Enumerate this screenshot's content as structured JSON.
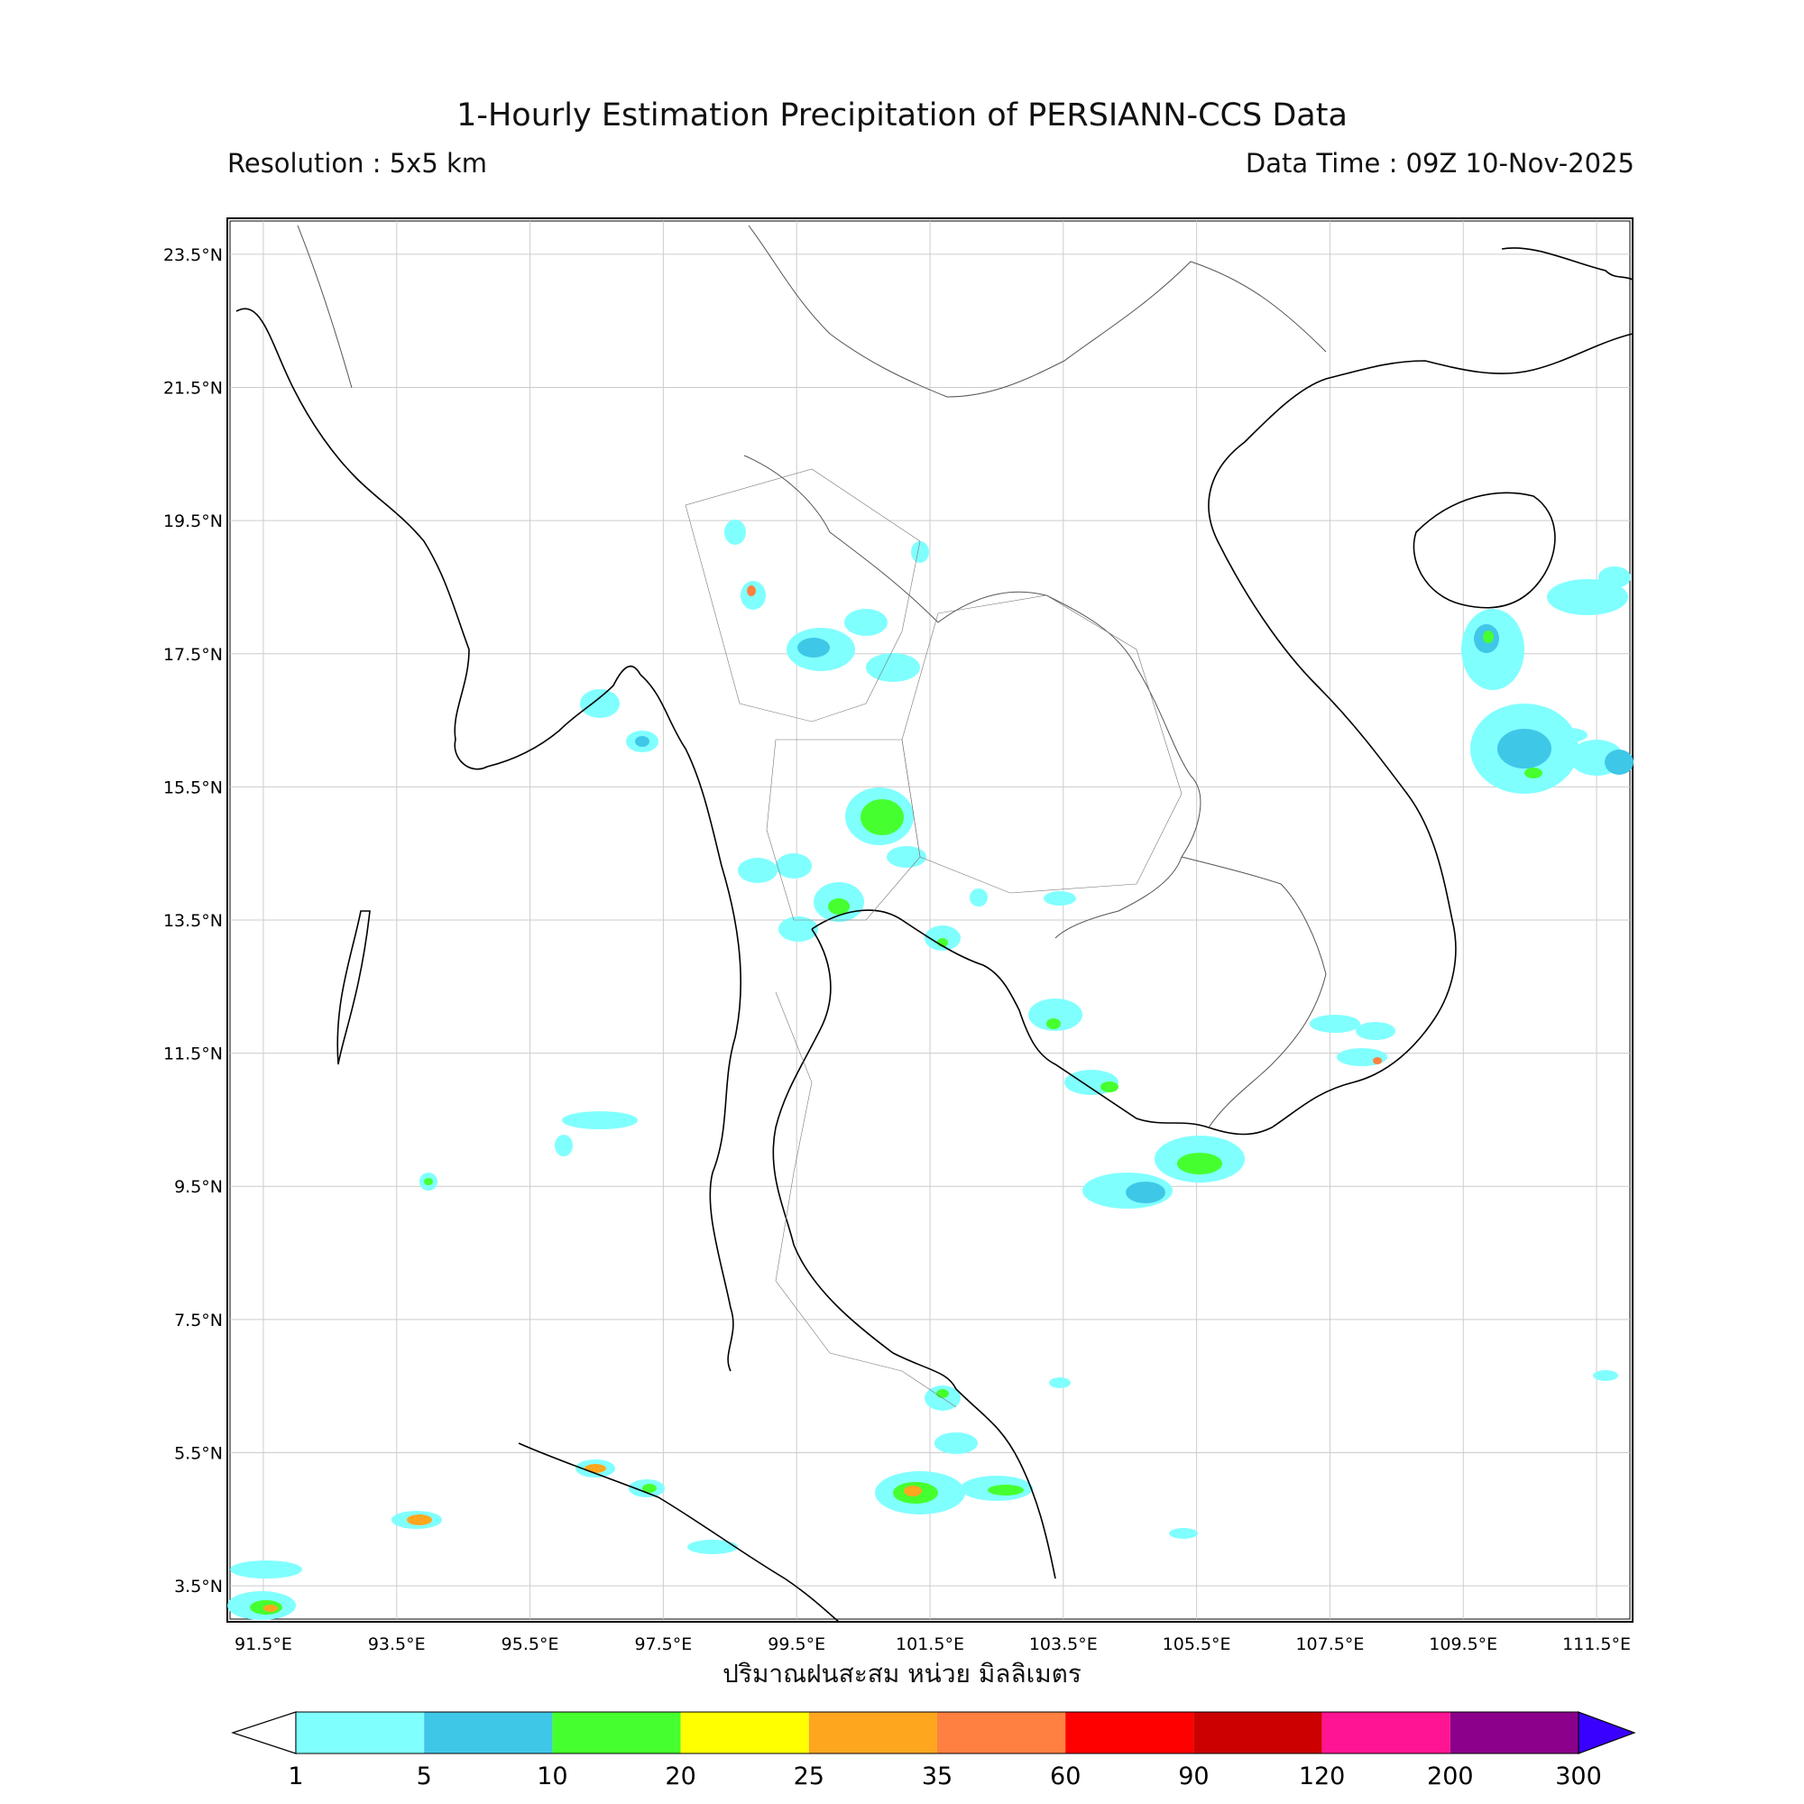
{
  "header": {
    "title": "1-Hourly Estimation Precipitation of PERSIANN-CCS Data",
    "resolution": "Resolution : 5x5 km",
    "data_time": "Data Time : 09Z 10-Nov-2025"
  },
  "map": {
    "region": "Thailand and Southeast Asia",
    "lon_range": [
      91.0,
      112.0
    ],
    "lat_range": [
      3.0,
      24.0
    ],
    "lon_ticks": [
      "91.5°E",
      "93.5°E",
      "95.5°E",
      "97.5°E",
      "99.5°E",
      "101.5°E",
      "103.5°E",
      "105.5°E",
      "107.5°E",
      "109.5°E",
      "111.5°E"
    ],
    "lat_ticks": [
      "23.5°N",
      "21.5°N",
      "19.5°N",
      "17.5°N",
      "15.5°N",
      "13.5°N",
      "11.5°N",
      "9.5°N",
      "7.5°N",
      "5.5°N",
      "3.5°N"
    ],
    "grid": true,
    "xaxis_title": "ปริมาณฝนสะสม หน่วย มิลลิเมตร"
  },
  "colorbar": {
    "labels": [
      "1",
      "5",
      "10",
      "20",
      "25",
      "35",
      "60",
      "90",
      "120",
      "200",
      "300"
    ],
    "colors": [
      "#80ffff",
      "#3fc7e8",
      "#46ff2e",
      "#ffff00",
      "#ffa61f",
      "#ff8040",
      "#ff0000",
      "#cc0000",
      "#ff1493",
      "#8b008b"
    ],
    "under_color": "#ffffff",
    "over_color": "#3a00ff"
  },
  "legend_colors": {
    "light": "#80ffff",
    "mid": "#3fc7e8",
    "green": "#46ff2e",
    "yellow": "#ffff00",
    "orange": "#ffa61f"
  }
}
